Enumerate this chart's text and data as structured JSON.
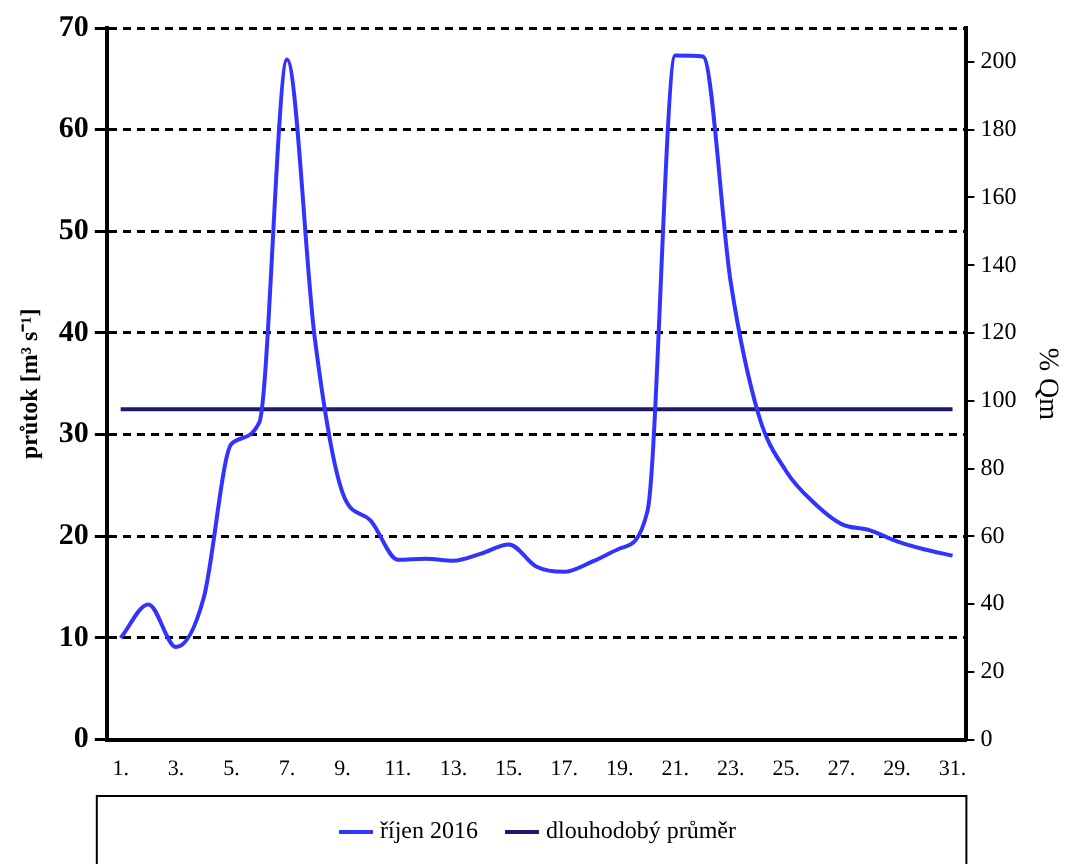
{
  "chart_data": {
    "type": "line",
    "ylabel": "průtok [m³ s⁻¹]",
    "y2label": "% Qm",
    "categories": [
      "1.",
      null,
      "3.",
      null,
      "5.",
      null,
      "7.",
      null,
      "9.",
      null,
      "11.",
      null,
      "13.",
      null,
      "15.",
      null,
      "17.",
      null,
      "19.",
      null,
      "21.",
      null,
      "23.",
      null,
      "25.",
      null,
      "27.",
      null,
      "29.",
      null,
      "31."
    ],
    "series": [
      {
        "name": "říjen 2016",
        "color": "#3333ff",
        "values": [
          10,
          13.3,
          9.1,
          14,
          29.1,
          31.2,
          66.9,
          39.5,
          24.3,
          21.6,
          17.7,
          17.8,
          17.6,
          18.3,
          19.2,
          17,
          16.5,
          17.5,
          18.8,
          22.5,
          67.3,
          67.2,
          45,
          32,
          26.4,
          23.3,
          21.2,
          20.6,
          19.5,
          18.7,
          18.1
        ]
      },
      {
        "name": "dlouhodobý průměr",
        "color": "#1a1a66",
        "values": [
          32.5,
          32.5,
          32.5,
          32.5,
          32.5,
          32.5,
          32.5,
          32.5,
          32.5,
          32.5,
          32.5,
          32.5,
          32.5,
          32.5,
          32.5,
          32.5,
          32.5,
          32.5,
          32.5,
          32.5,
          32.5,
          32.5,
          32.5,
          32.5,
          32.5,
          32.5,
          32.5,
          32.5,
          32.5,
          32.5,
          32.5
        ]
      }
    ],
    "ylim": [
      0,
      70
    ],
    "yticks": [
      0,
      10,
      20,
      30,
      40,
      50,
      60,
      70
    ],
    "y2lim": [
      0,
      210
    ],
    "y2ticks": [
      0,
      20,
      40,
      60,
      80,
      100,
      120,
      140,
      160,
      180,
      200
    ],
    "grid": "y",
    "legend": "bottom",
    "marker": "none",
    "line_style": "solid"
  }
}
